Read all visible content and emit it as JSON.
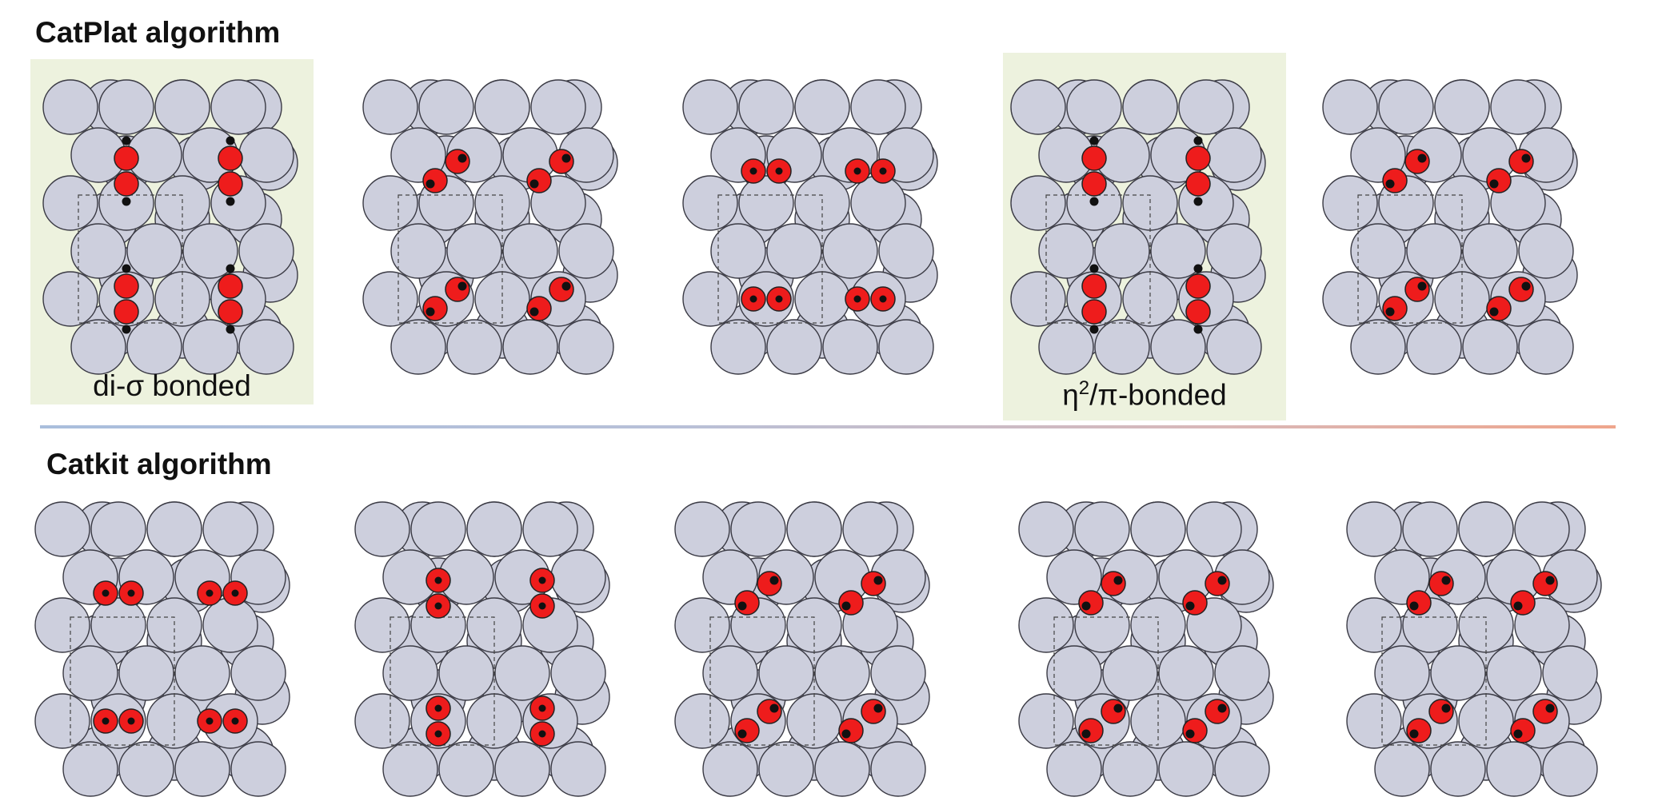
{
  "titles": {
    "top": "CatPlat algorithm",
    "bottom": "Catkit algorithm"
  },
  "captions": {
    "di_sigma": "di-σ bonded",
    "eta2_pi_prefix": "η",
    "eta2_pi_sup": "2",
    "eta2_pi_suffix": "/π-bonded"
  },
  "colors": {
    "slab_atom_fill": "#cdcfdd",
    "slab_atom_stroke": "#3a3a44",
    "adsorbate_fill": "#ee1c1c",
    "adsorbate_stroke": "#222222",
    "highlight_background": "#edf2de",
    "divider_start": "#a9bedc",
    "divider_end": "#efa58c"
  },
  "rows": {
    "catplat": {
      "panels": [
        {
          "id": "catplat-1",
          "highlighted": true,
          "configuration": "di-sigma-vertical"
        },
        {
          "id": "catplat-2",
          "highlighted": false,
          "configuration": "diagonal-ne"
        },
        {
          "id": "catplat-3",
          "highlighted": false,
          "configuration": "horizontal-pair"
        },
        {
          "id": "catplat-4",
          "highlighted": true,
          "configuration": "pi-bonded-vertical"
        },
        {
          "id": "catplat-5",
          "highlighted": false,
          "configuration": "diagonal-ne-low"
        }
      ]
    },
    "catkit": {
      "panels": [
        {
          "id": "catkit-1",
          "highlighted": false,
          "configuration": "horizontal-pair"
        },
        {
          "id": "catkit-2",
          "highlighted": false,
          "configuration": "vertical-pair"
        },
        {
          "id": "catkit-3",
          "highlighted": false,
          "configuration": "diagonal-ne"
        },
        {
          "id": "catkit-4",
          "highlighted": false,
          "configuration": "diagonal-ne-low"
        },
        {
          "id": "catkit-5",
          "highlighted": false,
          "configuration": "diagonal-ne-low"
        }
      ]
    }
  }
}
